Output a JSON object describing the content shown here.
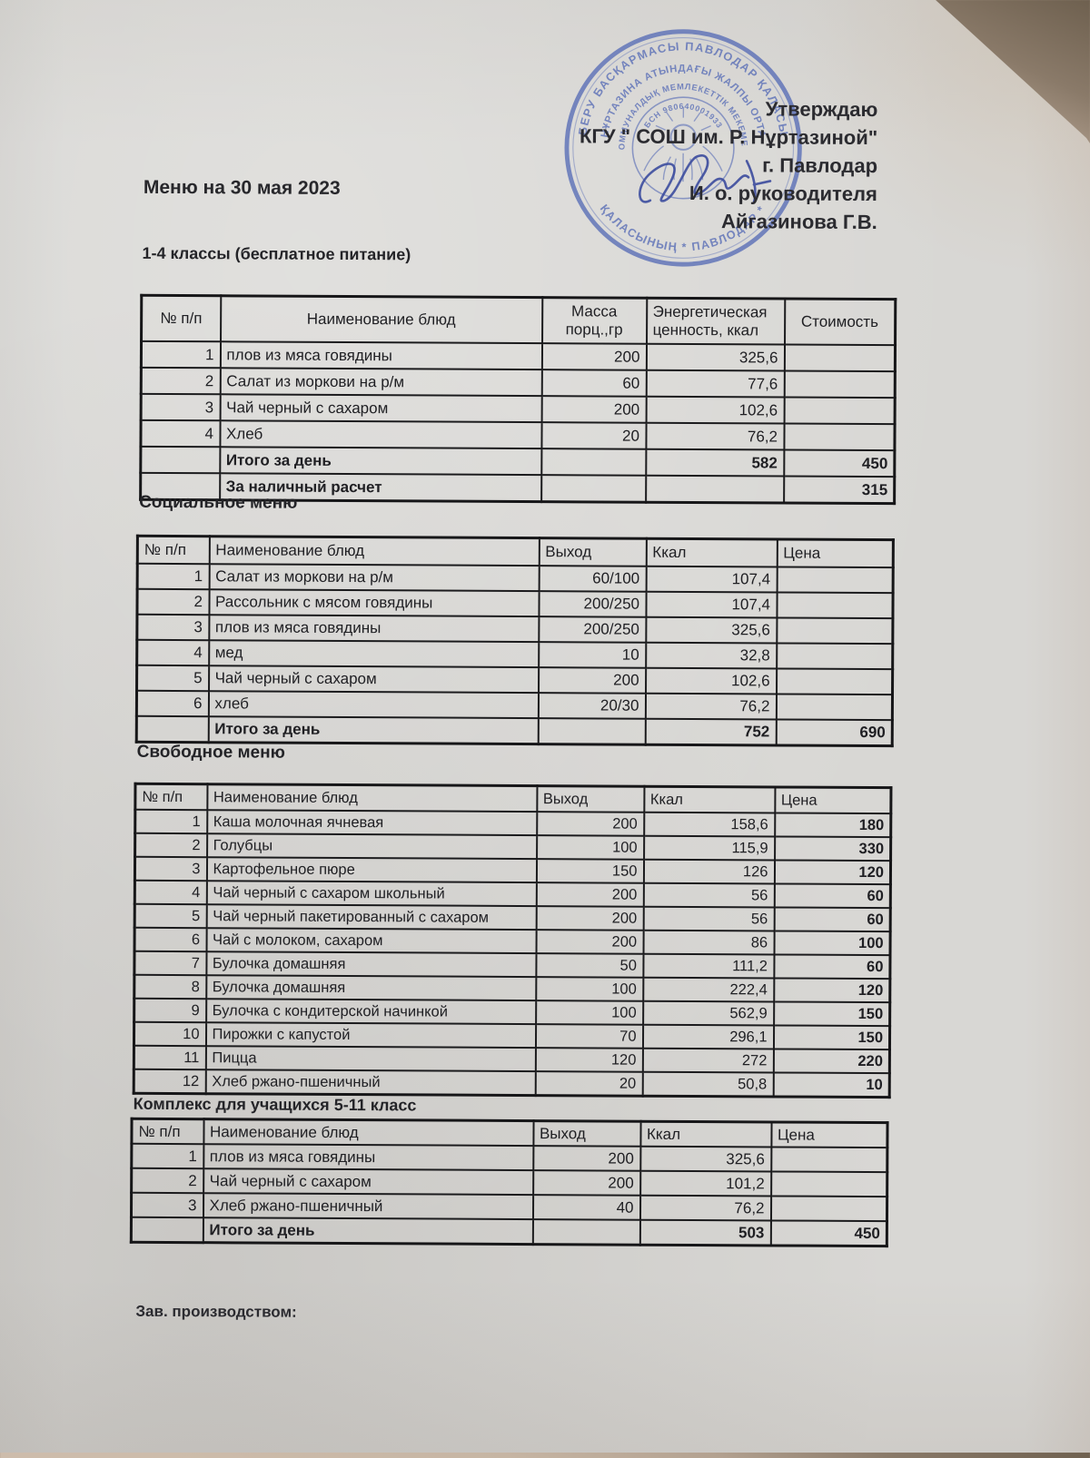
{
  "header": {
    "approve": "Утверждаю",
    "org": "КГУ \" СОШ им. Р. Нұртазиной\"",
    "city": "г. Павлодар",
    "role": "И. о. руководителя",
    "name": "Айгазинова Г.В.",
    "menu_title": "Меню на 30 мая  2023"
  },
  "stamp": {
    "ring_outer_top": "БЕРУ БАСҚАРМАСЫ ПАВЛОДАР ҚАЛАСЫ",
    "ring_outer_bottom": "ҚАЛАСЫНЫҢ * ПАВЛОДАР *",
    "ring_mid": "НҰРТАЗИНА АТЫНДАҒЫ ЖАЛПЫ ОРТА",
    "ring_inner": "КОММУНАЛДЫҚ МЕМЛЕКЕТТІК МЕКЕМЕСІ",
    "bin": "БСН 980640001933",
    "ink_color": "#3c4c9e",
    "stamp_color": "#5e72b8"
  },
  "sections": [
    {
      "title": "1-4 классы (бесплатное питание)",
      "columns": [
        "№ п/п",
        "Наименование блюд",
        "Масса порц.,гр",
        "Энергетическая\nценность, ккал",
        "Стоимость"
      ],
      "rows": [
        {
          "cells": [
            "1",
            "плов из мяса говядины",
            "200",
            "325,6",
            ""
          ]
        },
        {
          "cells": [
            "2",
            "Салат из моркови на р/м",
            "60",
            "77,6",
            ""
          ]
        },
        {
          "cells": [
            "3",
            "Чай черный с сахаром",
            "200",
            "102,6",
            ""
          ]
        },
        {
          "cells": [
            "4",
            "Хлеб",
            "20",
            "76,2",
            ""
          ]
        },
        {
          "cells": [
            "",
            "Итого за день",
            "",
            "582",
            "450"
          ],
          "bold": true
        },
        {
          "cells": [
            "",
            "За наличный расчет",
            "",
            "",
            "315"
          ],
          "bold": true
        }
      ]
    },
    {
      "title": "Социальное меню",
      "columns": [
        "№ п/п",
        "Наименование блюд",
        "Выход",
        "Ккал",
        "Цена"
      ],
      "rows": [
        {
          "cells": [
            "1",
            "Салат из моркови на р/м",
            "60/100",
            "107,4",
            ""
          ]
        },
        {
          "cells": [
            "2",
            "Рассольник с мясом говядины",
            "200/250",
            "107,4",
            ""
          ]
        },
        {
          "cells": [
            "3",
            "плов из мяса говядины",
            "200/250",
            "325,6",
            ""
          ]
        },
        {
          "cells": [
            "4",
            "мед",
            "10",
            "32,8",
            ""
          ]
        },
        {
          "cells": [
            "5",
            "Чай черный с сахаром",
            "200",
            "102,6",
            ""
          ]
        },
        {
          "cells": [
            "6",
            "хлеб",
            "20/30",
            "76,2",
            ""
          ]
        },
        {
          "cells": [
            "",
            "Итого за день",
            "",
            "752",
            "690"
          ],
          "bold": true
        }
      ]
    },
    {
      "title": "Свободное меню",
      "columns": [
        "№ п/п",
        "Наименование блюд",
        "Выход",
        "Ккал",
        "Цена"
      ],
      "price_bold": true,
      "rows": [
        {
          "cells": [
            "1",
            "Каша молочная ячневая",
            "200",
            "158,6",
            "180"
          ]
        },
        {
          "cells": [
            "2",
            "Голубцы",
            "100",
            "115,9",
            "330"
          ]
        },
        {
          "cells": [
            "3",
            "Картофельное пюре",
            "150",
            "126",
            "120"
          ]
        },
        {
          "cells": [
            "4",
            "Чай черный с сахаром школьный",
            "200",
            "56",
            "60"
          ]
        },
        {
          "cells": [
            "5",
            "Чай черный пакетированный с сахаром",
            "200",
            "56",
            "60"
          ]
        },
        {
          "cells": [
            "6",
            "Чай с молоком, сахаром",
            "200",
            "86",
            "100"
          ]
        },
        {
          "cells": [
            "7",
            "Булочка домашняя",
            "50",
            "111,2",
            "60"
          ]
        },
        {
          "cells": [
            "8",
            "Булочка домашняя",
            "100",
            "222,4",
            "120"
          ]
        },
        {
          "cells": [
            "9",
            "Булочка с кондитерской начинкой",
            "100",
            "562,9",
            "150"
          ]
        },
        {
          "cells": [
            "10",
            "Пирожки с капустой",
            "70",
            "296,1",
            "150"
          ]
        },
        {
          "cells": [
            "11",
            "Пицца",
            "120",
            "272",
            "220"
          ]
        },
        {
          "cells": [
            "12",
            "Хлеб ржано-пшеничный",
            "20",
            "50,8",
            "10"
          ]
        }
      ]
    },
    {
      "title": "Комплекс для учащихся 5-11 класс",
      "columns": [
        "№ п/п",
        "Наименование блюд",
        "Выход",
        "Ккал",
        "Цена"
      ],
      "rows": [
        {
          "cells": [
            "1",
            "плов из мяса говядины",
            "200",
            "325,6",
            ""
          ]
        },
        {
          "cells": [
            "2",
            "Чай черный с сахаром",
            "200",
            "101,2",
            ""
          ]
        },
        {
          "cells": [
            "3",
            "Хлеб ржано-пшеничный",
            "40",
            "76,2",
            ""
          ]
        },
        {
          "cells": [
            "",
            "Итого за день",
            "",
            "503",
            "450"
          ],
          "bold": true
        }
      ]
    }
  ],
  "footer": {
    "label": "Зав. производством:"
  }
}
